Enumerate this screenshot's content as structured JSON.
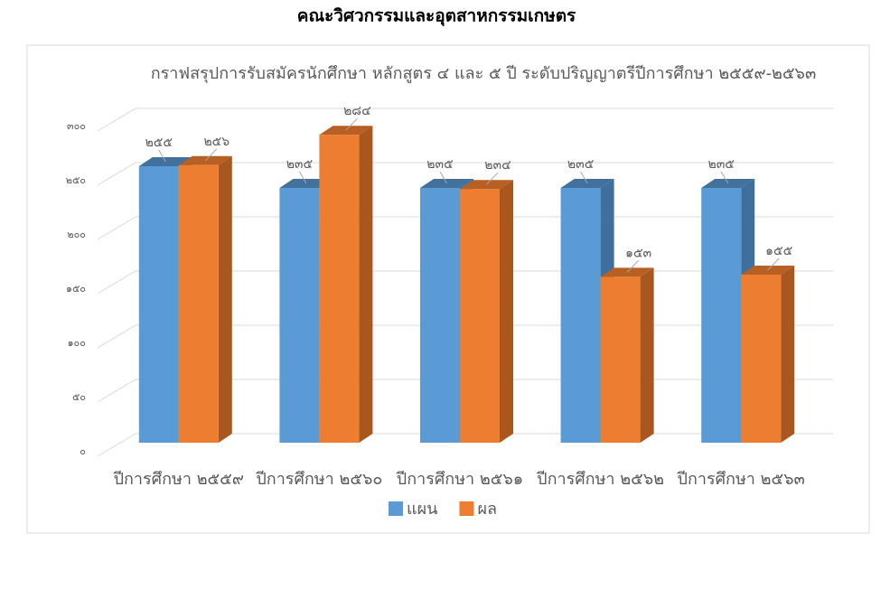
{
  "header": {
    "title": "คณะวิศวกรรมและอุตสาหกรรมเกษตร"
  },
  "chart_data": {
    "type": "bar3d",
    "title": "กราฟสรุปการรับสมัครนักศึกษา หลักสูตร ๔ และ ๕ ปี ระดับปริญญาตรีปีการศึกษา ๒๕๕๙-๒๕๖๓",
    "categories": [
      "ปีการศึกษา ๒๕๕๙",
      "ปีการศึกษา ๒๕๖๐",
      "ปีการศึกษา ๒๕๖๑",
      "ปีการศึกษา ๒๕๖๒",
      "ปีการศึกษา ๒๕๖๓"
    ],
    "series": [
      {
        "name": "แผน",
        "color": "#5b9bd5",
        "side_color": "#3f6f9c",
        "top_color": "#41719c",
        "values": [
          255,
          235,
          235,
          235,
          235
        ],
        "value_labels": [
          "๒๕๕",
          "๒๓๕",
          "๒๓๕",
          "๒๓๕",
          "๒๓๕"
        ]
      },
      {
        "name": "ผล",
        "color": "#ed7d31",
        "side_color": "#a9561f",
        "top_color": "#b85f24",
        "values": [
          256,
          284,
          234,
          153,
          155
        ],
        "value_labels": [
          "๒๕๖",
          "๒๘๔",
          "๒๓๔",
          "๑๕๓",
          "๑๕๕"
        ]
      }
    ],
    "ylim": [
      0,
      300
    ],
    "yticks": [
      {
        "value": 0,
        "label": "๐"
      },
      {
        "value": 50,
        "label": "๕๐"
      },
      {
        "value": 100,
        "label": "๑๐๐"
      },
      {
        "value": 150,
        "label": "๑๕๐"
      },
      {
        "value": 200,
        "label": "๒๐๐"
      },
      {
        "value": 250,
        "label": "๒๕๐"
      },
      {
        "value": 300,
        "label": "๓๐๐"
      }
    ],
    "grid": true,
    "legend": "bottom"
  }
}
